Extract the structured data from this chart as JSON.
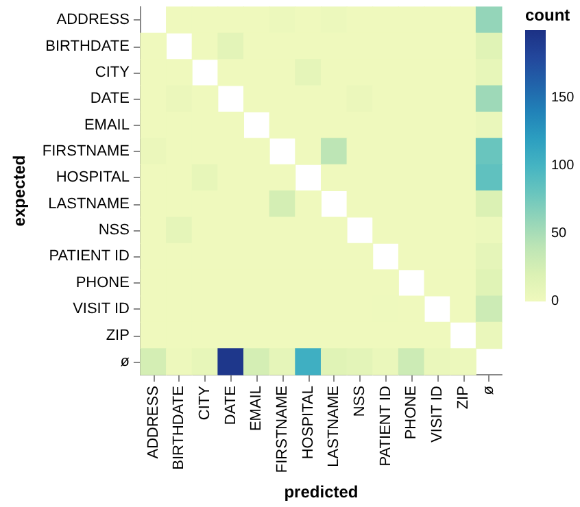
{
  "chart_data": {
    "type": "heatmap",
    "xlabel": "predicted",
    "ylabel": "expected",
    "clabel": "count",
    "categories": [
      "ADDRESS",
      "BIRTHDATE",
      "CITY",
      "DATE",
      "EMAIL",
      "FIRSTNAME",
      "HOSPITAL",
      "LASTNAME",
      "NSS",
      "PATIENT ID",
      "PHONE",
      "VISIT ID",
      "ZIP",
      "ø"
    ],
    "y_categories": [
      "ADDRESS",
      "BIRTHDATE",
      "CITY",
      "DATE",
      "EMAIL",
      "FIRSTNAME",
      "HOSPITAL",
      "LASTNAME",
      "NSS",
      "PATIENT ID",
      "PHONE",
      "VISIT ID",
      "ZIP",
      "ø"
    ],
    "cells": [
      [
        null,
        0,
        0,
        0,
        0,
        3,
        0,
        3,
        0,
        0,
        0,
        0,
        0,
        60
      ],
      [
        0,
        null,
        0,
        12,
        0,
        0,
        0,
        0,
        0,
        0,
        0,
        0,
        0,
        15
      ],
      [
        0,
        0,
        null,
        0,
        0,
        0,
        10,
        0,
        0,
        0,
        0,
        0,
        0,
        8
      ],
      [
        0,
        4,
        0,
        null,
        0,
        0,
        0,
        0,
        4,
        0,
        0,
        0,
        0,
        55
      ],
      [
        0,
        0,
        0,
        0,
        null,
        0,
        0,
        0,
        0,
        0,
        0,
        0,
        0,
        5
      ],
      [
        4,
        0,
        0,
        0,
        0,
        null,
        0,
        40,
        0,
        0,
        0,
        0,
        0,
        80
      ],
      [
        0,
        0,
        8,
        0,
        0,
        0,
        null,
        0,
        0,
        0,
        0,
        0,
        0,
        85
      ],
      [
        0,
        0,
        0,
        0,
        0,
        25,
        0,
        null,
        0,
        0,
        0,
        0,
        0,
        20
      ],
      [
        0,
        10,
        0,
        0,
        0,
        0,
        0,
        0,
        null,
        0,
        0,
        0,
        0,
        3
      ],
      [
        0,
        0,
        0,
        0,
        0,
        0,
        0,
        0,
        0,
        null,
        0,
        0,
        0,
        10
      ],
      [
        0,
        0,
        0,
        0,
        0,
        0,
        0,
        0,
        0,
        0,
        null,
        0,
        0,
        15
      ],
      [
        0,
        0,
        0,
        0,
        0,
        0,
        0,
        0,
        0,
        1,
        0,
        null,
        0,
        30
      ],
      [
        0,
        0,
        0,
        0,
        0,
        0,
        0,
        0,
        0,
        0,
        0,
        0,
        null,
        5
      ],
      [
        25,
        2,
        8,
        195,
        25,
        10,
        105,
        15,
        12,
        5,
        30,
        5,
        3,
        null
      ]
    ],
    "clim": [
      0,
      200
    ],
    "cticks": [
      0,
      50,
      100,
      150
    ]
  }
}
